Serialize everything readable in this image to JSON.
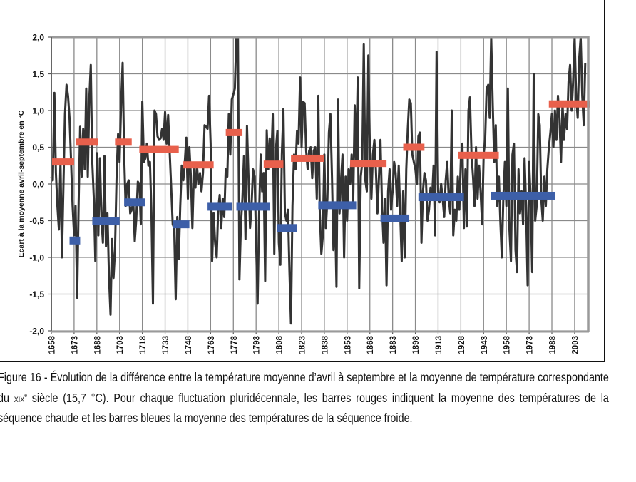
{
  "chart_data": {
    "type": "line",
    "ylabel": "Ecart à la moyenne avril-septembre en °C",
    "xlabel": "",
    "xlim": [
      1658,
      2011.5
    ],
    "ylim": [
      -2.0,
      2.0
    ],
    "grid": true,
    "x_ticks": [
      "1658",
      "1673",
      "1688",
      "1703",
      "1718",
      "1733",
      "1748",
      "1763",
      "1778",
      "1793",
      "1808",
      "1823",
      "1838",
      "1853",
      "1868",
      "1883",
      "1898",
      "1913",
      "1928",
      "1943",
      "1958",
      "1973",
      "1988",
      "2003"
    ],
    "y_ticks": [
      "2,0",
      "1,5",
      "1,0",
      "0,5",
      "0,0",
      "-0,5",
      "-1,0",
      "-1,5",
      "-2,0"
    ],
    "y_tick_values": [
      2.0,
      1.5,
      1.0,
      0.5,
      0.0,
      -0.5,
      -1.0,
      -1.5,
      -2.0
    ],
    "line_color": "#333333",
    "series": [
      {
        "x_start": 1658,
        "values": [
          0.1,
          0.05,
          1.24,
          0.15,
          -0.3,
          -0.62,
          0.3,
          -1.0,
          0.0,
          0.95,
          1.35,
          1.2,
          0.9,
          0.3,
          -0.3,
          -0.7,
          -0.3,
          -1.55,
          -0.25,
          0.78,
          0.1,
          0.75,
          0.2,
          1.3,
          0.1,
          1.15,
          1.62,
          0.3,
          -0.2,
          -1.05,
          0.42,
          -0.7,
          0.35,
          -0.45,
          -0.8,
          0.38,
          -0.85,
          -0.4,
          -1.25,
          -1.78,
          -0.75,
          -1.28,
          -0.9,
          0.1,
          0.68,
          0.3,
          1.1,
          1.65,
          0.4,
          -0.3,
          0.0,
          0.05,
          -0.4,
          -0.35,
          -0.25,
          -0.78,
          -0.48,
          0.03,
          0.0,
          -0.55,
          1.12,
          0.3,
          0.35,
          0.55,
          0.25,
          0.3,
          -0.4,
          -1.63,
          1.0,
          0.95,
          0.65,
          0.6,
          0.62,
          0.75,
          0.6,
          0.98,
          0.55,
          0.94,
          0.45,
          -0.05,
          -0.55,
          -0.6,
          -1.57,
          -0.45,
          -1.02,
          -0.3,
          0.25,
          0.05,
          0.3,
          0.63,
          -0.2,
          0.5,
          0.1,
          -0.6,
          0.2,
          -0.05,
          0.25,
          0.0,
          0.15,
          -0.1,
          0.15,
          0.8,
          0.78,
          0.75,
          1.2,
          0.55,
          -1.05,
          -0.4,
          -0.8,
          -1.0,
          -0.35,
          -0.15,
          -0.6,
          -0.2,
          -0.45,
          0.2,
          0.1,
          0.95,
          0.4,
          1.15,
          1.22,
          1.3,
          2.0,
          2.0,
          -1.3,
          -0.55,
          -0.2,
          0.38,
          -0.75,
          0.79,
          0.1,
          -0.6,
          -0.3,
          0.2,
          0.1,
          -0.8,
          -1.63,
          -0.4,
          0.4,
          -0.1,
          0.15,
          -1.32,
          0.73,
          0.2,
          0.62,
          0.3,
          0.95,
          -0.95,
          0.45,
          0.72,
          -0.8,
          -1.1,
          0.4,
          1.02,
          -0.4,
          -0.5,
          -0.35,
          -1.2,
          -1.9,
          -0.3,
          0.4,
          0.2,
          0.72,
          0.55,
          1.45,
          0.5,
          1.12,
          1.1,
          0.45,
          0.2,
          0.45,
          0.5,
          0.08,
          0.45,
          0.5,
          -0.2,
          1.2,
          -0.4,
          -0.95,
          -0.7,
          0.4,
          -0.6,
          -0.2,
          0.7,
          0.95,
          0.1,
          -0.9,
          -0.3,
          -1.4,
          1.15,
          -0.4,
          0.05,
          0.4,
          -1.0,
          0.1,
          -0.5,
          0.2,
          0.0,
          0.4,
          -0.3,
          1.07,
          0.3,
          1.45,
          -1.42,
          0.1,
          0.3,
          1.9,
          0.05,
          -0.1,
          1.75,
          0.5,
          -0.2,
          0.4,
          0.6,
          0.2,
          -0.4,
          0.1,
          0.6,
          -0.3,
          -0.8,
          -0.2,
          -1.38,
          -0.1,
          0.2,
          -0.35,
          -0.1,
          0.3,
          0.15,
          -0.3,
          0.25,
          -0.4,
          -1.05,
          -0.1,
          -1.0,
          0.2,
          0.75,
          1.15,
          1.1,
          0.4,
          0.3,
          0.2,
          0.0,
          0.65,
          0.7,
          -0.8,
          -0.1,
          0.15,
          0.05,
          -0.5,
          -0.35,
          -0.05,
          -0.2,
          0.25,
          -0.7,
          1.8,
          -0.1,
          -0.25,
          0.0,
          -0.2,
          -0.45,
          0.05,
          0.3,
          -0.2,
          -0.4,
          1.0,
          -0.7,
          -0.35,
          -0.5,
          0.1,
          -0.35,
          0.35,
          0.55,
          -0.6,
          0.2,
          -0.58,
          1.0,
          1.18,
          0.4,
          0.1,
          -0.3,
          0.5,
          -0.2,
          0.25,
          -0.1,
          -0.55,
          0.4,
          0.6,
          1.3,
          1.35,
          0.9,
          2.0,
          1.1,
          0.3,
          0.8,
          -0.3,
          0.1,
          -0.5,
          -1.0,
          -0.2,
          0.3,
          -0.3,
          1.3,
          -0.6,
          -1.05,
          0.4,
          0.55,
          -0.9,
          -1.2,
          0.2,
          -0.4,
          -0.1,
          -0.55,
          0.35,
          -0.3,
          -1.38,
          0.3,
          -0.2,
          -1.2,
          1.5,
          -0.5,
          -0.3,
          0.95,
          0.8,
          -0.2,
          -0.5,
          0.1,
          -0.3,
          0.2,
          0.5,
          0.7,
          0.95,
          0.5,
          1.0,
          0.6,
          1.2,
          0.9,
          0.3,
          1.1,
          0.6,
          0.95,
          0.75,
          1.4,
          1.62,
          1.0,
          1.4,
          2.0,
          1.2,
          0.9,
          1.7,
          2.0,
          1.2,
          0.8,
          1.65
        ]
      }
    ],
    "warm_color": "#e8604c",
    "cold_color": "#3d5fa8",
    "warm_bars": [
      {
        "start": 1658,
        "end": 1673,
        "value": 0.3
      },
      {
        "start": 1674,
        "end": 1689,
        "value": 0.57
      },
      {
        "start": 1700,
        "end": 1711,
        "value": 0.57
      },
      {
        "start": 1716,
        "end": 1742,
        "value": 0.47
      },
      {
        "start": 1745,
        "end": 1765,
        "value": 0.26
      },
      {
        "start": 1773,
        "end": 1784,
        "value": 0.7
      },
      {
        "start": 1798,
        "end": 1811,
        "value": 0.27
      },
      {
        "start": 1816,
        "end": 1838,
        "value": 0.35
      },
      {
        "start": 1855,
        "end": 1879,
        "value": 0.28
      },
      {
        "start": 1890,
        "end": 1904,
        "value": 0.5
      },
      {
        "start": 1926,
        "end": 1953,
        "value": 0.39
      },
      {
        "start": 1986,
        "end": 2013,
        "value": 1.09
      }
    ],
    "cold_bars": [
      {
        "start": 1670,
        "end": 1677,
        "value": -0.77
      },
      {
        "start": 1685,
        "end": 1703,
        "value": -0.51
      },
      {
        "start": 1706,
        "end": 1720,
        "value": -0.25
      },
      {
        "start": 1738,
        "end": 1749,
        "value": -0.55
      },
      {
        "start": 1761,
        "end": 1777,
        "value": -0.31
      },
      {
        "start": 1780,
        "end": 1802,
        "value": -0.31
      },
      {
        "start": 1807,
        "end": 1820,
        "value": -0.6
      },
      {
        "start": 1834,
        "end": 1859,
        "value": -0.29
      },
      {
        "start": 1875,
        "end": 1894,
        "value": -0.47
      },
      {
        "start": 1900,
        "end": 1930,
        "value": -0.18
      },
      {
        "start": 1948,
        "end": 1990,
        "value": -0.16
      }
    ]
  },
  "caption": {
    "part1": "Figure 16 - Évolution de la différence entre la température moyenne d’avril à septembre et la moyenne de température correspondante du ",
    "century": "XIX",
    "century_sup": "e",
    "part2": " siècle (15,7 °C). Pour chaque fluctuation pluridécennale, les barres rouges indiquent la moyenne des températures de la séquence chaude et les barres bleues la moyenne des températures de la séquence froide."
  }
}
